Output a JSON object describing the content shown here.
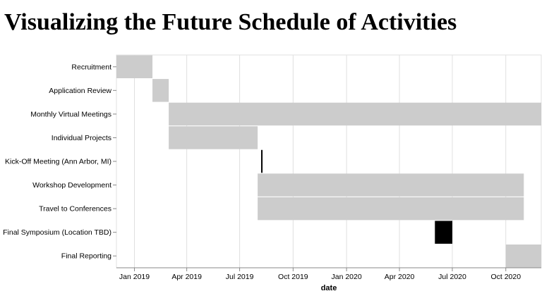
{
  "title": "Visualizing the Future Schedule of Activities",
  "chart_data": {
    "type": "gantt",
    "xlabel": "date",
    "xlim": [
      "2018-12-01",
      "2020-12-01"
    ],
    "x_ticks": [
      {
        "date": "2019-01-01",
        "label": "Jan 2019"
      },
      {
        "date": "2019-04-01",
        "label": "Apr 2019"
      },
      {
        "date": "2019-07-01",
        "label": "Jul 2019"
      },
      {
        "date": "2019-10-01",
        "label": "Oct 2019"
      },
      {
        "date": "2020-01-01",
        "label": "Jan 2020"
      },
      {
        "date": "2020-04-01",
        "label": "Apr 2020"
      },
      {
        "date": "2020-07-01",
        "label": "Jul 2020"
      },
      {
        "date": "2020-10-01",
        "label": "Oct 2020"
      }
    ],
    "grid": true,
    "colors": {
      "bar": "#cccccc",
      "milestone": "#000000",
      "grid": "#e0e0e0",
      "axis": "#888888"
    },
    "tasks": [
      {
        "name": "Recruitment",
        "start": "2018-12-01",
        "end": "2019-02-01",
        "color": "#cccccc"
      },
      {
        "name": "Application Review",
        "start": "2019-02-01",
        "end": "2019-03-01",
        "color": "#cccccc"
      },
      {
        "name": "Monthly Virtual Meetings",
        "start": "2019-03-01",
        "end": "2020-12-01",
        "color": "#cccccc"
      },
      {
        "name": "Individual Projects",
        "start": "2019-03-01",
        "end": "2019-08-01",
        "color": "#cccccc"
      },
      {
        "name": "Kick-Off Meeting (Ann Arbor, MI)",
        "start": "2019-08-07",
        "end": "2019-08-09",
        "color": "#000000"
      },
      {
        "name": "Workshop Development",
        "start": "2019-08-01",
        "end": "2020-11-01",
        "color": "#cccccc"
      },
      {
        "name": "Travel to Conferences",
        "start": "2019-08-01",
        "end": "2020-11-01",
        "color": "#cccccc"
      },
      {
        "name": "Final Symposium (Location TBD)",
        "start": "2020-06-01",
        "end": "2020-07-01",
        "color": "#000000"
      },
      {
        "name": "Final Reporting",
        "start": "2020-10-01",
        "end": "2020-12-01",
        "color": "#cccccc"
      }
    ]
  }
}
